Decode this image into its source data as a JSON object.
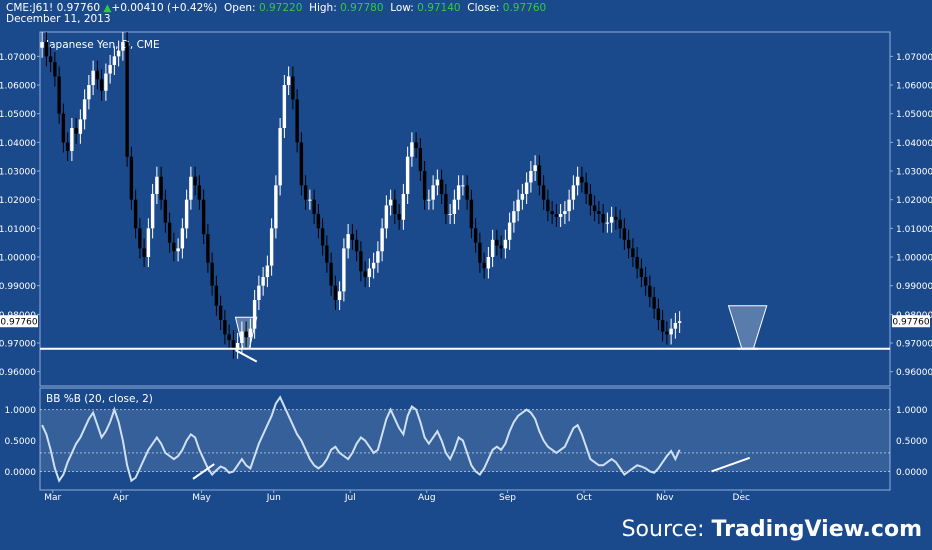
{
  "header": {
    "symbol": "CME:J61!",
    "last": "0.97760",
    "change_arrow": "▲",
    "change": "+0.00410 (+0.42%)",
    "open_label": "Open:",
    "open": "0.97220",
    "high_label": "High:",
    "high": "0.97780",
    "low_label": "Low:",
    "low": "0.97140",
    "close_label": "Close:",
    "close": "0.97760",
    "date": "December 11, 2013"
  },
  "source": {
    "prefix": "Source: ",
    "brand": "TradingView.com"
  },
  "colors": {
    "background": "#1b4a8c",
    "up_candle": "#ffffff",
    "down_candle": "#000000",
    "indicator": "#cfe0f5",
    "accent_green": "#2ecc40"
  },
  "chart_data": [
    {
      "type": "candlestick",
      "title": "Japanese Yen, D, CME",
      "ylim": [
        0.955,
        1.0785
      ],
      "y_ticks": [
        "1.07000",
        "1.06000",
        "1.05000",
        "1.04000",
        "1.03000",
        "1.02000",
        "1.01000",
        "1.00000",
        "0.99000",
        "0.98000",
        "0.97000",
        "0.96000"
      ],
      "y_tick_values": [
        1.07,
        1.06,
        1.05,
        1.04,
        1.03,
        1.02,
        1.01,
        1.0,
        0.99,
        0.98,
        0.97,
        0.96
      ],
      "x_ticks": [
        "Mar",
        "Apr",
        "May",
        "Jun",
        "Jul",
        "Aug",
        "Sep",
        "Oct",
        "Nov",
        "Dec"
      ],
      "last_price_label": "0.97760",
      "support_level": 0.968,
      "x_range": [
        0,
        200
      ],
      "x_tick_positions": [
        3,
        19,
        38,
        55,
        73,
        91,
        110,
        128,
        147,
        165
      ],
      "pattern_zones": [
        {
          "x": [
            46,
            51
          ],
          "y_top": 0.979,
          "y_bottom": 0.968
        },
        {
          "x": [
            162,
            171
          ],
          "y_top": 0.983,
          "y_bottom": 0.968
        }
      ],
      "trend_lines": [
        {
          "x": [
            46,
            51
          ],
          "y": [
            0.9675,
            0.9635
          ]
        },
        {
          "x": [
            164,
            169
          ],
          "y": [
            0.968,
            0.968
          ]
        }
      ],
      "candles_close": [
        1.075,
        1.07,
        1.068,
        1.063,
        1.05,
        1.04,
        1.037,
        1.045,
        1.043,
        1.048,
        1.055,
        1.06,
        1.065,
        1.062,
        1.058,
        1.064,
        1.067,
        1.07,
        1.072,
        1.075,
        1.035,
        1.02,
        1.01,
        1.003,
        1.0,
        1.01,
        1.022,
        1.028,
        1.02,
        1.012,
        1.005,
        1.002,
        1.003,
        1.01,
        1.02,
        1.028,
        1.025,
        1.02,
        1.008,
        0.998,
        0.99,
        0.983,
        0.978,
        0.973,
        0.971,
        0.968,
        0.97,
        0.974,
        0.972,
        0.975,
        0.985,
        0.99,
        0.993,
        0.997,
        1.01,
        1.025,
        1.045,
        1.06,
        1.063,
        1.055,
        1.04,
        1.025,
        1.02,
        1.02,
        1.015,
        1.01,
        1.004,
        0.998,
        0.99,
        0.985,
        0.988,
        1.003,
        1.008,
        1.006,
        1.002,
        0.995,
        0.993,
        0.996,
        0.998,
        1.002,
        1.01,
        1.018,
        1.02,
        1.015,
        1.013,
        1.022,
        1.035,
        1.04,
        1.038,
        1.03,
        1.02,
        1.02,
        1.025,
        1.027,
        1.022,
        1.015,
        1.015,
        1.02,
        1.025,
        1.025,
        1.02,
        1.01,
        1.005,
        0.998,
        0.996,
        1.0,
        1.006,
        1.004,
        1.003,
        1.006,
        1.012,
        1.016,
        1.02,
        1.022,
        1.026,
        1.03,
        1.032,
        1.025,
        1.02,
        1.016,
        1.015,
        1.014,
        1.015,
        1.016,
        1.02,
        1.025,
        1.028,
        1.026,
        1.022,
        1.018,
        1.016,
        1.015,
        1.012,
        1.012,
        1.014,
        1.013,
        1.01,
        1.006,
        1.003,
        1.0,
        0.996,
        0.993,
        0.99,
        0.986,
        0.982,
        0.978,
        0.974,
        0.973,
        0.975,
        0.977,
        0.9776
      ],
      "bb_percent_b": {
        "title": "BB %B (20, close, 2)",
        "ylim": [
          -0.3,
          1.35
        ],
        "y_ticks": [
          "1.0000",
          "0.5000",
          "0.0000"
        ],
        "y_tick_values": [
          1.0,
          0.5,
          0.0
        ],
        "band_levels": [
          1.0,
          0.3,
          0.0
        ],
        "values": [
          0.75,
          0.6,
          0.35,
          0.05,
          -0.15,
          -0.05,
          0.15,
          0.3,
          0.45,
          0.55,
          0.7,
          0.85,
          0.95,
          0.75,
          0.55,
          0.65,
          0.8,
          1.0,
          0.8,
          0.5,
          0.1,
          -0.15,
          -0.1,
          0.05,
          0.2,
          0.35,
          0.45,
          0.55,
          0.45,
          0.3,
          0.25,
          0.2,
          0.25,
          0.35,
          0.5,
          0.6,
          0.55,
          0.35,
          0.2,
          0.05,
          -0.05,
          0.02,
          0.08,
          0.05,
          -0.02,
          0.0,
          0.1,
          0.2,
          0.1,
          0.05,
          0.25,
          0.45,
          0.6,
          0.75,
          0.9,
          1.1,
          1.2,
          1.05,
          0.9,
          0.75,
          0.6,
          0.5,
          0.35,
          0.2,
          0.1,
          0.05,
          0.1,
          0.2,
          0.35,
          0.4,
          0.3,
          0.25,
          0.2,
          0.3,
          0.45,
          0.55,
          0.5,
          0.4,
          0.3,
          0.35,
          0.6,
          0.85,
          1.0,
          0.85,
          0.7,
          0.6,
          0.9,
          1.05,
          1.0,
          0.8,
          0.55,
          0.45,
          0.55,
          0.65,
          0.5,
          0.3,
          0.2,
          0.35,
          0.55,
          0.5,
          0.3,
          0.1,
          0.0,
          -0.05,
          0.05,
          0.2,
          0.35,
          0.4,
          0.35,
          0.45,
          0.65,
          0.8,
          0.9,
          0.95,
          1.0,
          0.95,
          0.85,
          0.65,
          0.5,
          0.4,
          0.35,
          0.3,
          0.35,
          0.4,
          0.55,
          0.7,
          0.75,
          0.6,
          0.4,
          0.2,
          0.15,
          0.1,
          0.1,
          0.15,
          0.2,
          0.15,
          0.05,
          -0.05,
          0.0,
          0.05,
          0.1,
          0.08,
          0.05,
          0.0,
          -0.02,
          0.05,
          0.15,
          0.25,
          0.33,
          0.2,
          0.35
        ],
        "trend_lines": [
          {
            "x": [
              36,
              41
            ],
            "y": [
              -0.12,
              0.12
            ]
          },
          {
            "x": [
              158,
              167
            ],
            "y": [
              0.0,
              0.22
            ]
          }
        ]
      }
    }
  ]
}
